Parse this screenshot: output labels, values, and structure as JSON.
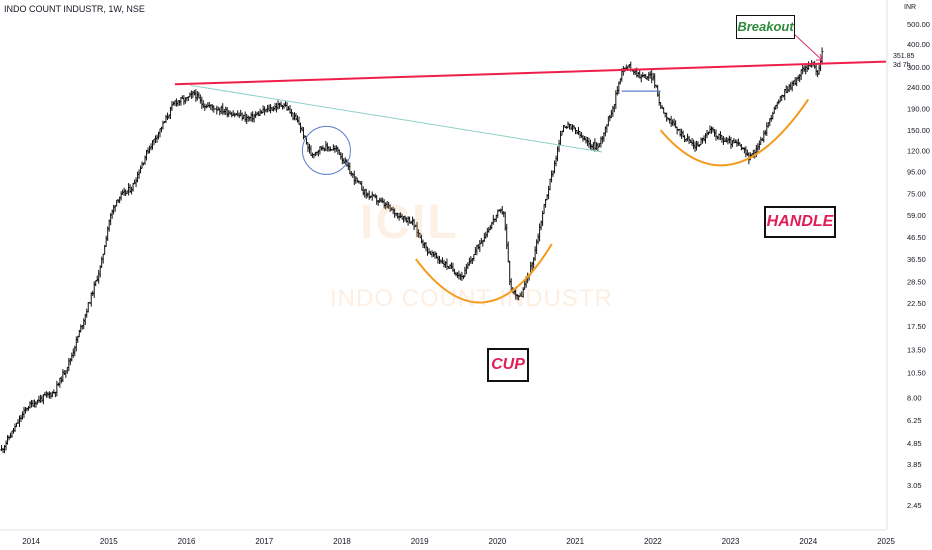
{
  "header": {
    "symbol_line": "INDO COUNT INDUSTR, 1W, NSE"
  },
  "price_scale": {
    "currency": "INR",
    "last_price": "351.85",
    "countdown": "3d 7h",
    "tick_labels": [
      "500.00",
      "400.00",
      "300.00",
      "240.00",
      "190.00",
      "150.00",
      "120.00",
      "95.00",
      "75.00",
      "59.00",
      "46.50",
      "36.50",
      "28.50",
      "22.50",
      "17.50",
      "13.50",
      "10.50",
      "8.00",
      "6.25",
      "4.85",
      "3.85",
      "3.05",
      "2.45"
    ]
  },
  "watermark": {
    "ticker": "ICIL",
    "name": "INDO COUNT INDUSTR"
  },
  "annotations": {
    "breakout": "Breakout",
    "handle": "HANDLE",
    "cup": "CUP"
  },
  "colors": {
    "resistance_line": "#ef1f4a",
    "cup_curve": "#f59a1c",
    "diagonal_line": "#8fd0c8",
    "circle": "#5b7fc7",
    "bars": "#111111",
    "breakout_text": "#2e8b3e",
    "label_text": "#e01e5a"
  },
  "chart_data": {
    "type": "ohlc",
    "title": "INDO COUNT INDUSTR, 1W, NSE",
    "xlabel": "",
    "ylabel": "",
    "y_scale": "log",
    "ylim": [
      2.2,
      560
    ],
    "x_tick_labels": [
      "2014",
      "2015",
      "2016",
      "2017",
      "2018",
      "2019",
      "2020",
      "2021",
      "2022",
      "2023",
      "2024",
      "2025"
    ],
    "x_range": [
      2013.6,
      2025.0
    ],
    "series_anchors": [
      [
        2013.62,
        4.5
      ],
      [
        2013.8,
        5.8
      ],
      [
        2013.95,
        7.2
      ],
      [
        2014.1,
        7.8
      ],
      [
        2014.3,
        8.5
      ],
      [
        2014.5,
        12
      ],
      [
        2014.7,
        20
      ],
      [
        2014.9,
        34
      ],
      [
        2015.0,
        55
      ],
      [
        2015.1,
        70
      ],
      [
        2015.3,
        80
      ],
      [
        2015.5,
        120
      ],
      [
        2015.7,
        160
      ],
      [
        2015.85,
        205
      ],
      [
        2016.0,
        210
      ],
      [
        2016.1,
        225
      ],
      [
        2016.2,
        200
      ],
      [
        2016.5,
        185
      ],
      [
        2016.8,
        170
      ],
      [
        2017.0,
        185
      ],
      [
        2017.25,
        200
      ],
      [
        2017.45,
        160
      ],
      [
        2017.6,
        115
      ],
      [
        2017.75,
        125
      ],
      [
        2017.95,
        120
      ],
      [
        2018.1,
        95
      ],
      [
        2018.3,
        75
      ],
      [
        2018.5,
        68
      ],
      [
        2018.7,
        60
      ],
      [
        2018.9,
        55
      ],
      [
        2019.1,
        40
      ],
      [
        2019.35,
        34
      ],
      [
        2019.55,
        30
      ],
      [
        2019.75,
        42
      ],
      [
        2019.9,
        52
      ],
      [
        2020.0,
        60
      ],
      [
        2020.08,
        62
      ],
      [
        2020.17,
        26
      ],
      [
        2020.3,
        24
      ],
      [
        2020.45,
        35
      ],
      [
        2020.6,
        65
      ],
      [
        2020.75,
        110
      ],
      [
        2020.85,
        160
      ],
      [
        2021.0,
        150
      ],
      [
        2021.15,
        130
      ],
      [
        2021.3,
        125
      ],
      [
        2021.5,
        200
      ],
      [
        2021.6,
        290
      ],
      [
        2021.7,
        300
      ],
      [
        2021.85,
        270
      ],
      [
        2022.0,
        270
      ],
      [
        2022.1,
        195
      ],
      [
        2022.25,
        160
      ],
      [
        2022.4,
        140
      ],
      [
        2022.55,
        125
      ],
      [
        2022.75,
        150
      ],
      [
        2022.9,
        135
      ],
      [
        2023.1,
        128
      ],
      [
        2023.25,
        110
      ],
      [
        2023.4,
        135
      ],
      [
        2023.55,
        185
      ],
      [
        2023.7,
        230
      ],
      [
        2023.85,
        260
      ],
      [
        2023.95,
        300
      ],
      [
        2024.05,
        310
      ],
      [
        2024.12,
        275
      ],
      [
        2024.18,
        352
      ]
    ],
    "resistance_line": {
      "from": [
        2015.85,
        248
      ],
      "to": [
        2025.0,
        318
      ]
    },
    "diagonal_line": {
      "from": [
        2016.05,
        245
      ],
      "to": [
        2021.35,
        118
      ]
    },
    "support_line": {
      "from": [
        2021.6,
        230
      ],
      "to": [
        2022.1,
        230
      ]
    },
    "legend": "none",
    "grid": false
  }
}
